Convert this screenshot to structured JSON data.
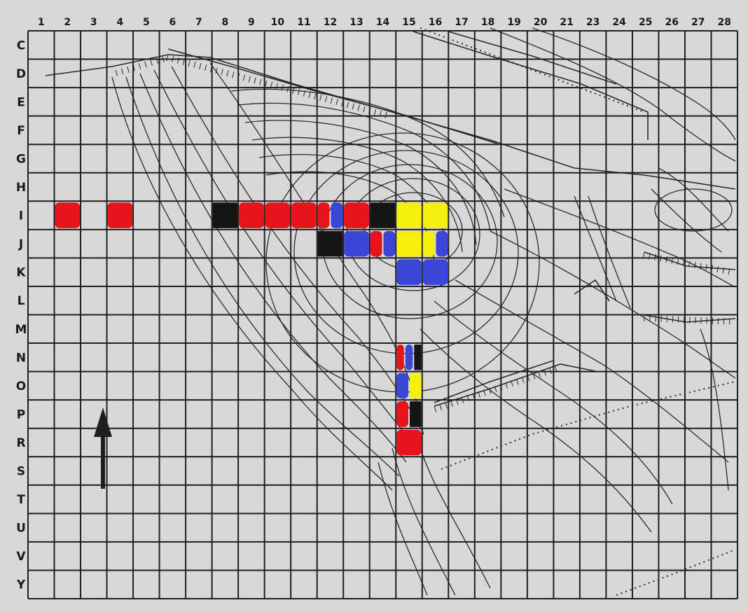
{
  "grid": {
    "column_labels": [
      "1",
      "2",
      "3",
      "4",
      "5",
      "6",
      "7",
      "8",
      "9",
      "10",
      "11",
      "12",
      "13",
      "14",
      "15",
      "16",
      "17",
      "18",
      "19",
      "20",
      "21",
      "23",
      "24",
      "25",
      "26",
      "27",
      "28"
    ],
    "row_labels": [
      "C",
      "D",
      "E",
      "F",
      "G",
      "H",
      "I",
      "J",
      "K",
      "L",
      "M",
      "N",
      "O",
      "P",
      "R",
      "S",
      "T",
      "U",
      "V",
      "Y"
    ]
  },
  "colors": {
    "paper": "#d8d8d8",
    "ink": "#1f1f1f",
    "red": "#e8141c",
    "blue": "#3a46d6",
    "yellow": "#f4ef0f",
    "black": "#151515"
  },
  "marks": [
    {
      "row": "I",
      "col": "2",
      "color": "red"
    },
    {
      "row": "I",
      "col": "4",
      "color": "red"
    },
    {
      "row": "I",
      "col": "8",
      "color": "black"
    },
    {
      "row": "I",
      "col": "9",
      "color": "red"
    },
    {
      "row": "I",
      "col": "10",
      "color": "red"
    },
    {
      "row": "I",
      "col": "11",
      "color": "red"
    },
    {
      "row": "I",
      "col": "12",
      "color": "red"
    },
    {
      "row": "I",
      "col": "12",
      "color": "blue"
    },
    {
      "row": "I",
      "col": "13",
      "color": "red"
    },
    {
      "row": "I",
      "col": "14",
      "color": "black"
    },
    {
      "row": "I",
      "col": "15",
      "color": "yellow"
    },
    {
      "row": "I",
      "col": "16",
      "color": "yellow"
    },
    {
      "row": "J",
      "col": "12",
      "color": "black"
    },
    {
      "row": "J",
      "col": "13",
      "color": "blue"
    },
    {
      "row": "J",
      "col": "14",
      "color": "red"
    },
    {
      "row": "J",
      "col": "14",
      "color": "blue"
    },
    {
      "row": "J",
      "col": "15",
      "color": "yellow"
    },
    {
      "row": "J",
      "col": "16",
      "color": "yellow"
    },
    {
      "row": "J",
      "col": "16",
      "color": "blue"
    },
    {
      "row": "K",
      "col": "15",
      "color": "blue"
    },
    {
      "row": "K",
      "col": "16",
      "color": "blue"
    },
    {
      "row": "N",
      "col": "15",
      "color": "red"
    },
    {
      "row": "N",
      "col": "15",
      "color": "blue"
    },
    {
      "row": "N",
      "col": "15",
      "color": "black"
    },
    {
      "row": "O",
      "col": "15",
      "color": "blue"
    },
    {
      "row": "O",
      "col": "15",
      "color": "yellow"
    },
    {
      "row": "P",
      "col": "15",
      "color": "red"
    },
    {
      "row": "P",
      "col": "15",
      "color": "black"
    },
    {
      "row": "R",
      "col": "15",
      "color": "red"
    }
  ],
  "north_arrow": {
    "direction": "north",
    "icon": "north-arrow-icon"
  }
}
